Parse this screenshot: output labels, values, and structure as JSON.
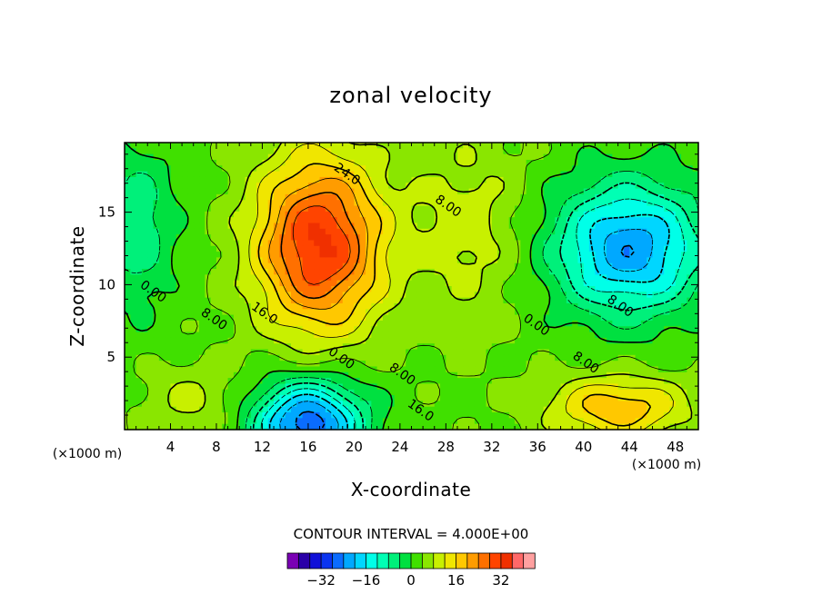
{
  "chart_data": {
    "type": "heatmap",
    "title": "zonal velocity",
    "xlabel": "X-coordinate",
    "ylabel": "Z-coordinate",
    "x_unit": "(×1000 m)",
    "xlim": [
      0,
      50
    ],
    "ylim": [
      0,
      19.8
    ],
    "xticks": [
      "4",
      "8",
      "12",
      "16",
      "20",
      "24",
      "28",
      "32",
      "36",
      "40",
      "44",
      "48"
    ],
    "yticks": [
      "5",
      "10",
      "15"
    ],
    "contour_interval_text": "CONTOUR INTERVAL = 4.000E+00",
    "contour_interval": 4,
    "contour_labels": [
      {
        "text": "24.0",
        "x": 19.2,
        "y": 17.4
      },
      {
        "text": "16.0",
        "x": 12.0,
        "y": 7.8
      },
      {
        "text": "8.00",
        "x": 7.6,
        "y": 7.4
      },
      {
        "text": "0.00",
        "x": 2.3,
        "y": 9.3
      },
      {
        "text": "8.00",
        "x": 28.0,
        "y": 15.2
      },
      {
        "text": "0.00",
        "x": 35.7,
        "y": 7.0
      },
      {
        "text": "8.00",
        "x": 43.0,
        "y": 8.3
      },
      {
        "text": "8.00",
        "x": 40.0,
        "y": 4.4
      },
      {
        "text": "0.00",
        "x": 18.7,
        "y": 4.7
      },
      {
        "text": "8.00",
        "x": 24.0,
        "y": 3.6
      },
      {
        "text": "16.0",
        "x": 25.6,
        "y": 1.1
      }
    ],
    "features": [
      {
        "x": 17,
        "y": 12.8,
        "amp": 30,
        "sx": 5.5,
        "sy": 6.0
      },
      {
        "x": 16,
        "y": 0.4,
        "amp": -30,
        "sx": 4.8,
        "sy": 3.0
      },
      {
        "x": 44,
        "y": 12.5,
        "amp": -26,
        "sx": 6.5,
        "sy": 4.5
      },
      {
        "x": 1,
        "y": 14.0,
        "amp": -10,
        "sx": 3.5,
        "sy": 5.5
      },
      {
        "x": 43,
        "y": 1.5,
        "amp": 16,
        "sx": 6.0,
        "sy": 2.2
      },
      {
        "x": 30,
        "y": 14.0,
        "amp": 7,
        "sx": 5.0,
        "sy": 7.0
      },
      {
        "x": 6,
        "y": 2.0,
        "amp": 6,
        "sx": 4.5,
        "sy": 2.5
      }
    ],
    "colorbar": {
      "colors": [
        "#7a00b4",
        "#2a00a8",
        "#1010d8",
        "#0a34f0",
        "#0a6cff",
        "#00a8ff",
        "#00d6ff",
        "#00ffe8",
        "#00ffb4",
        "#00f07a",
        "#00e040",
        "#40e000",
        "#8ae600",
        "#c8f000",
        "#f0e600",
        "#ffc800",
        "#ff9c00",
        "#ff7000",
        "#ff4400",
        "#f03000",
        "#ff6868",
        "#ffa0a0"
      ],
      "min": -44,
      "step": 4,
      "tick_labels": [
        {
          "value": -32,
          "text": "−32"
        },
        {
          "value": -16,
          "text": "−16"
        },
        {
          "value": 0,
          "text": "0"
        },
        {
          "value": 16,
          "text": "16"
        },
        {
          "value": 32,
          "text": "32"
        }
      ]
    }
  }
}
